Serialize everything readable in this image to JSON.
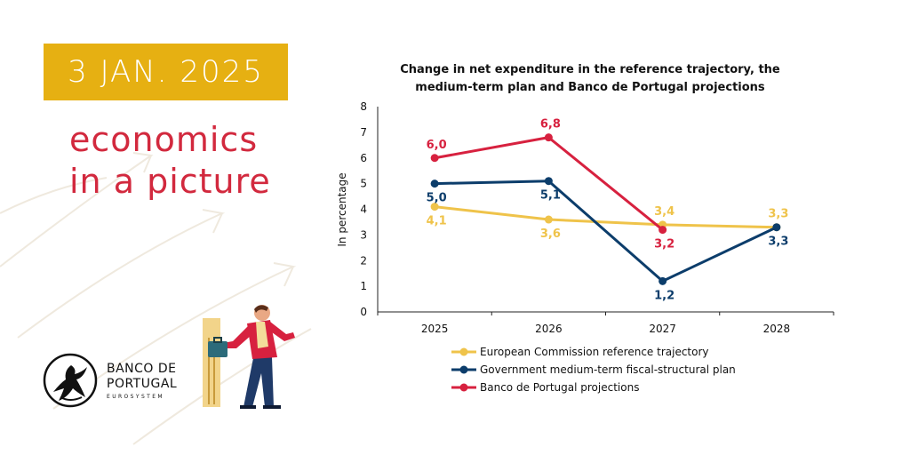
{
  "badge": {
    "date": "3 JAN. 2025"
  },
  "headline": {
    "line1": "economics",
    "line2": "in a picture"
  },
  "logo": {
    "line1": "BANCO DE",
    "line2": "PORTUGAL",
    "subtitle": "EUROSYSTEM"
  },
  "colors": {
    "badge": "#e6b012",
    "headline": "#d2293e",
    "ec": "#efc34a",
    "gov": "#0c3d6b",
    "bdp": "#d7213f"
  },
  "chart_data": {
    "type": "line",
    "title": "Change in net expenditure in the reference trajectory, the medium-term plan and Banco de Portugal projections",
    "title_lines": [
      "Change in net expenditure in the reference trajectory, the",
      "medium-term plan and Banco de Portugal projections"
    ],
    "xlabel": "",
    "ylabel": "In percentage",
    "ylim": [
      0,
      8
    ],
    "yticks": [
      "0",
      "1",
      "2",
      "3",
      "4",
      "5",
      "6",
      "7",
      "8"
    ],
    "categories": [
      "2025",
      "2026",
      "2027",
      "2028"
    ],
    "series": [
      {
        "name": "European Commission reference trajectory",
        "color": "#efc34a",
        "values": [
          4.1,
          3.6,
          3.4,
          3.3
        ],
        "labels": [
          "4,1",
          "3,6",
          "3,4",
          "3,3"
        ],
        "label_pos": [
          "below",
          "below",
          "above",
          "above"
        ]
      },
      {
        "name": "Government medium-term fiscal-structural plan",
        "color": "#0c3d6b",
        "values": [
          5.0,
          5.1,
          1.2,
          3.3
        ],
        "labels": [
          "5,0",
          "5,1",
          "1,2",
          "3,3"
        ],
        "label_pos": [
          "below",
          "below",
          "below",
          "below"
        ]
      },
      {
        "name": "Banco de Portugal projections",
        "color": "#d7213f",
        "values": [
          6.0,
          6.8,
          3.2,
          null
        ],
        "labels": [
          "6,0",
          "6,8",
          "3,2",
          null
        ],
        "label_pos": [
          "above",
          "above",
          "below",
          null
        ]
      }
    ],
    "legend": "bottom"
  }
}
